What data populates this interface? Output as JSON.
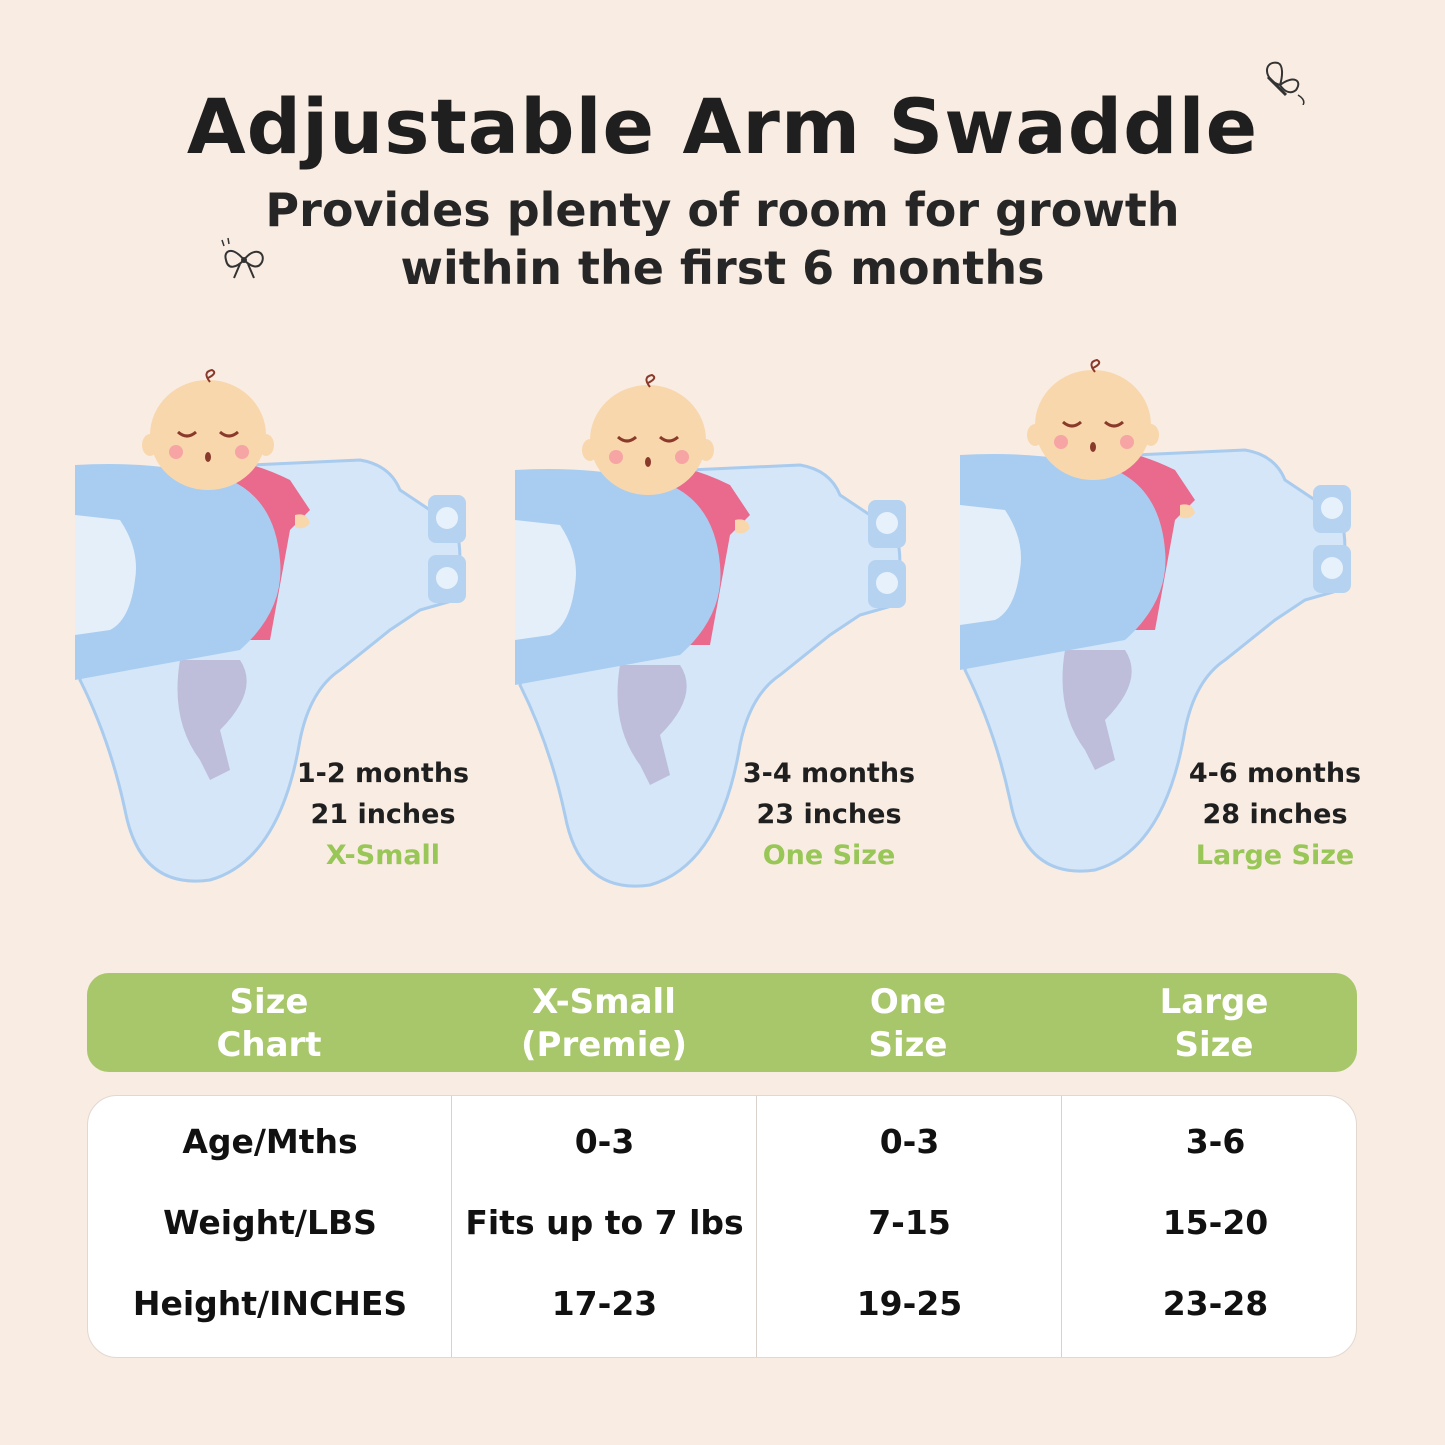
{
  "header": {
    "title": "Adjustable Arm Swaddle",
    "subtitle_line1": "Provides plenty of room for growth",
    "subtitle_line2": "within the first 6 months"
  },
  "illustrations": [
    {
      "age": "1-2 months",
      "length": "21 inches",
      "size": "X-Small"
    },
    {
      "age": "3-4 months",
      "length": "23 inches",
      "size": "One Size"
    },
    {
      "age": "4-6 months",
      "length": "28 inches",
      "size": "Large Size"
    }
  ],
  "size_chart": {
    "headers": [
      [
        "Size",
        "Chart"
      ],
      [
        "X-Small",
        "(Premie)"
      ],
      [
        "One",
        "Size"
      ],
      [
        "Large",
        "Size"
      ]
    ],
    "rows": [
      [
        "Age/Mths",
        "0-3",
        "0-3",
        "3-6"
      ],
      [
        "Weight/LBS",
        "Fits up to 7 lbs",
        "7-15",
        "15-20"
      ],
      [
        "Height/INCHES",
        "17-23",
        "19-25",
        "23-28"
      ]
    ]
  },
  "colors": {
    "background": "#f9ece3",
    "accent_green": "#a8c66a",
    "size_label_green": "#98c657",
    "swaddle_blue": "#b5d3f0"
  },
  "decorations": [
    "butterfly-icon",
    "bow-icon"
  ]
}
